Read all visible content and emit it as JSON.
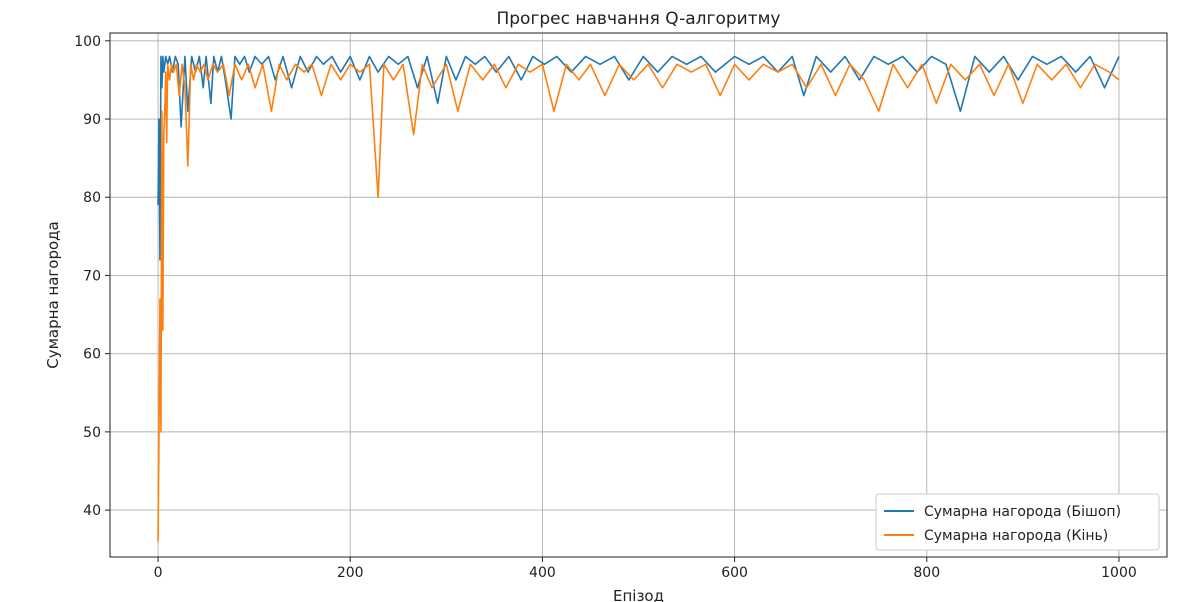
{
  "chart_data": {
    "type": "line",
    "title": "Прогрес навчання Q-алгоритму",
    "xlabel": "Епізод",
    "ylabel": "Сумарна нагорода",
    "xlim": [
      -50,
      1050
    ],
    "ylim": [
      34,
      101
    ],
    "xticks": [
      0,
      200,
      400,
      600,
      800,
      1000
    ],
    "yticks": [
      40,
      50,
      60,
      70,
      80,
      90,
      100
    ],
    "grid": true,
    "legend_position": "bottom-right",
    "series": [
      {
        "name": "Сумарна нагорода (Бішоп)",
        "color": "#1f77b4",
        "baseline": 98,
        "x": [
          0,
          1,
          2,
          3,
          4,
          5,
          6,
          8,
          10,
          12,
          15,
          18,
          21,
          24,
          28,
          31,
          35,
          39,
          43,
          47,
          50,
          55,
          58,
          62,
          66,
          70,
          76,
          80,
          85,
          90,
          95,
          101,
          108,
          115,
          122,
          130,
          139,
          148,
          156,
          165,
          172,
          181,
          190,
          200,
          210,
          220,
          229,
          240,
          250,
          260,
          270,
          280,
          291,
          300,
          310,
          320,
          330,
          340,
          352,
          365,
          378,
          390,
          402,
          415,
          430,
          445,
          460,
          475,
          490,
          505,
          520,
          535,
          550,
          565,
          580,
          600,
          615,
          630,
          645,
          660,
          672,
          685,
          700,
          715,
          730,
          745,
          760,
          775,
          790,
          805,
          820,
          835,
          850,
          865,
          880,
          895,
          910,
          925,
          940,
          955,
          970,
          985,
          1000
        ],
        "values": [
          79,
          90,
          72,
          98,
          94,
          98,
          96,
          98,
          97,
          98,
          96,
          98,
          97,
          89,
          98,
          91,
          98,
          96,
          98,
          94,
          98,
          92,
          98,
          96,
          98,
          95,
          90,
          98,
          97,
          98,
          96,
          98,
          97,
          98,
          95,
          98,
          94,
          98,
          96,
          98,
          97,
          98,
          96,
          98,
          95,
          98,
          96,
          98,
          97,
          98,
          94,
          98,
          92,
          98,
          95,
          98,
          97,
          98,
          96,
          98,
          95,
          98,
          97,
          98,
          96,
          98,
          97,
          98,
          95,
          98,
          96,
          98,
          97,
          98,
          96,
          98,
          97,
          98,
          96,
          98,
          93,
          98,
          96,
          98,
          95,
          98,
          97,
          98,
          96,
          98,
          97,
          91,
          98,
          96,
          98,
          95,
          98,
          97,
          98,
          96,
          98,
          94,
          98
        ]
      },
      {
        "name": "Сумарна нагорода (Кінь)",
        "color": "#ff7f0e",
        "baseline": 97,
        "x": [
          0,
          1,
          2,
          3,
          4,
          5,
          6,
          7,
          8,
          9,
          10,
          12,
          14,
          16,
          19,
          22,
          25,
          28,
          31,
          34,
          37,
          40,
          44,
          48,
          52,
          57,
          62,
          68,
          74,
          80,
          87,
          94,
          101,
          109,
          118,
          126,
          134,
          143,
          152,
          160,
          170,
          180,
          190,
          200,
          210,
          220,
          229,
          235,
          245,
          255,
          266,
          275,
          285,
          300,
          312,
          325,
          338,
          350,
          362,
          375,
          387,
          400,
          412,
          425,
          438,
          450,
          465,
          480,
          495,
          510,
          525,
          540,
          555,
          570,
          585,
          600,
          615,
          630,
          645,
          660,
          675,
          690,
          705,
          720,
          735,
          750,
          765,
          780,
          795,
          810,
          825,
          840,
          855,
          870,
          885,
          900,
          915,
          930,
          945,
          960,
          975,
          990,
          1000
        ],
        "values": [
          36,
          50,
          67,
          50,
          91,
          63,
          88,
          91,
          96,
          87,
          97,
          95,
          97,
          96,
          97,
          93,
          97,
          94,
          84,
          97,
          95,
          97,
          96,
          97,
          95,
          97,
          96,
          97,
          93,
          97,
          95,
          97,
          94,
          97,
          91,
          97,
          95,
          97,
          96,
          97,
          93,
          97,
          95,
          97,
          96,
          97,
          80,
          97,
          95,
          97,
          88,
          97,
          94,
          97,
          91,
          97,
          95,
          97,
          94,
          97,
          96,
          97,
          91,
          97,
          95,
          97,
          93,
          97,
          95,
          97,
          94,
          97,
          96,
          97,
          93,
          97,
          95,
          97,
          96,
          97,
          94,
          97,
          93,
          97,
          95,
          91,
          97,
          94,
          97,
          92,
          97,
          95,
          97,
          93,
          97,
          92,
          97,
          95,
          97,
          94,
          97,
          96,
          95
        ]
      }
    ]
  }
}
